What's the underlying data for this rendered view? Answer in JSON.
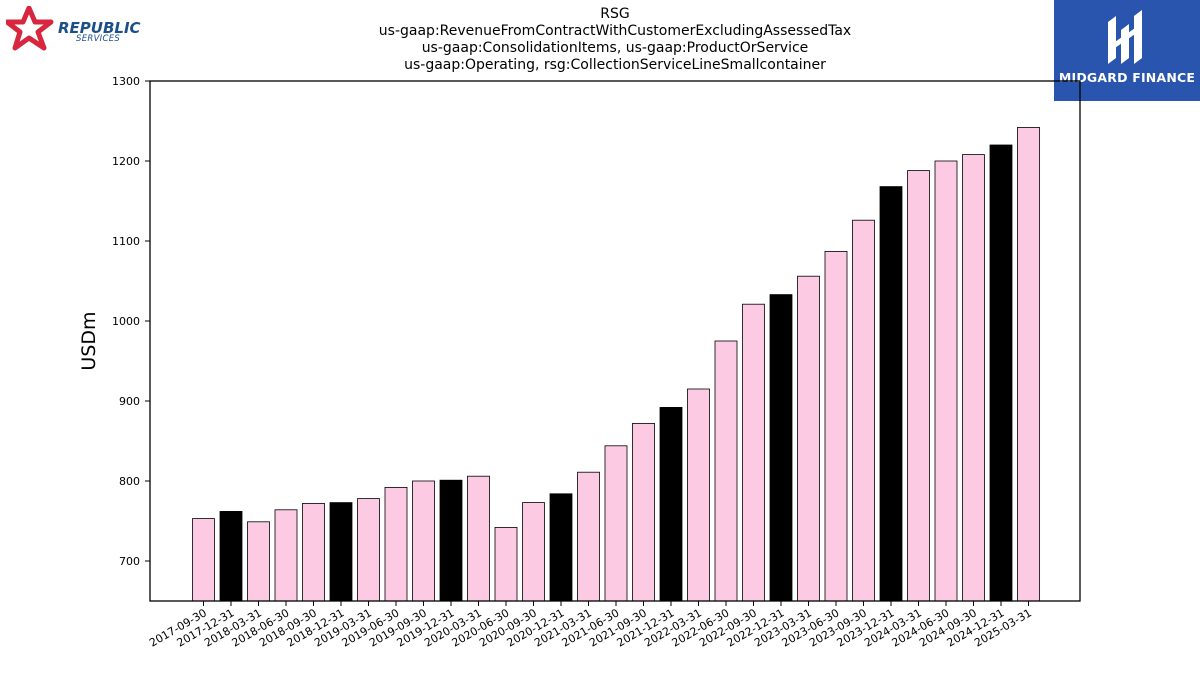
{
  "header": {
    "title_lines": [
      "RSG",
      "us-gaap:RevenueFromContractWithCustomerExcludingAssessedTax",
      "us-gaap:ConsolidationItems, us-gaap:ProductOrService",
      "us-gaap:Operating, rsg:CollectionServiceLineSmallcontainer"
    ]
  },
  "logos": {
    "left": {
      "word": "REPUBLIC",
      "sub": "SERVICES"
    },
    "right": {
      "word": "MIDGARD FINANCE"
    }
  },
  "colors": {
    "pink": "#fccae2",
    "black": "#000000",
    "brand_blue": "#2a55ae",
    "brand_red": "#d8263f",
    "brand_navy": "#1b4f8a"
  },
  "chart_data": {
    "type": "bar",
    "ylabel": "USDm",
    "xlabel": "",
    "ylim": [
      650,
      1300
    ],
    "yticks": [
      700,
      800,
      900,
      1000,
      1100,
      1200,
      1300
    ],
    "grid": false,
    "categories": [
      "2017-09-30",
      "2017-12-31",
      "2018-03-31",
      "2018-06-30",
      "2018-09-30",
      "2018-12-31",
      "2019-03-31",
      "2019-06-30",
      "2019-09-30",
      "2019-12-31",
      "2020-03-31",
      "2020-06-30",
      "2020-09-30",
      "2020-12-31",
      "2021-03-31",
      "2021-06-30",
      "2021-09-30",
      "2021-12-31",
      "2022-03-31",
      "2022-06-30",
      "2022-09-30",
      "2022-12-31",
      "2023-03-31",
      "2023-06-30",
      "2023-09-30",
      "2023-12-31",
      "2024-03-31",
      "2024-06-30",
      "2024-09-30",
      "2024-12-31",
      "2025-03-31"
    ],
    "values": [
      753,
      762,
      749,
      764,
      772,
      773,
      778,
      792,
      800,
      801,
      806,
      742,
      773,
      784,
      811,
      844,
      872,
      892,
      915,
      975,
      1021,
      1033,
      1056,
      1087,
      1126,
      1168,
      1188,
      1200,
      1208,
      1220,
      1242
    ],
    "bar_colors": [
      "pink",
      "black",
      "pink",
      "pink",
      "pink",
      "black",
      "pink",
      "pink",
      "pink",
      "black",
      "pink",
      "pink",
      "pink",
      "black",
      "pink",
      "pink",
      "pink",
      "black",
      "pink",
      "pink",
      "pink",
      "black",
      "pink",
      "pink",
      "pink",
      "black",
      "pink",
      "pink",
      "pink",
      "black",
      "pink"
    ]
  }
}
